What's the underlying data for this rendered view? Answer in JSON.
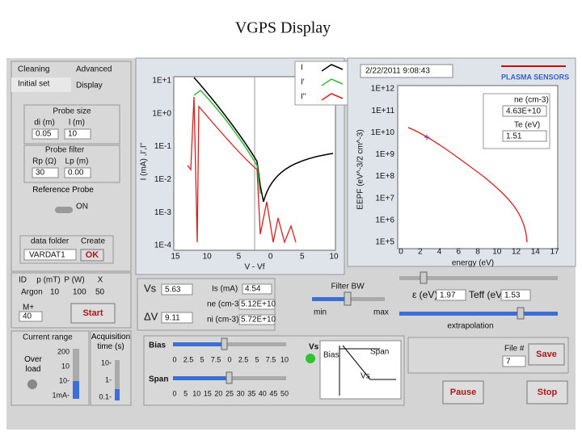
{
  "title": "VGPS Display",
  "tabs": {
    "cleaning": "Cleaning",
    "advanced": "Advanced",
    "initial_set": "Initial set",
    "display": "Display"
  },
  "probe_size": {
    "label": "Probe size",
    "headers": [
      "di (m)",
      "l (m)"
    ],
    "values": [
      "0.05",
      "10"
    ]
  },
  "probe_filter": {
    "label": "Probe filter",
    "headers": [
      "Rp (Ω)",
      "Lp (m)"
    ],
    "values": [
      "30",
      "0.00"
    ]
  },
  "reference_probe": {
    "label": "Reference Probe",
    "state": "ON"
  },
  "data_folder": {
    "label": "data folder",
    "create": "Create",
    "path": "VARDAT1",
    "ok": "OK"
  },
  "gas": {
    "headers": [
      "ID",
      "p (mT)",
      "P (W)",
      "X"
    ],
    "values": [
      "Argon",
      "10",
      "100",
      "50"
    ],
    "mass_label": "M+",
    "mass": "40",
    "start": "Start"
  },
  "current_range": {
    "label": "Current range",
    "overload": "Over load",
    "ticks": [
      "200",
      "10",
      "10-",
      "1mA-"
    ]
  },
  "acquisition": {
    "label": "Acquisition time (s)",
    "ticks": [
      "10-",
      "1-",
      "0.1-"
    ]
  },
  "iv_plot": {
    "y_label": "I (mA) ,I',I''",
    "yticks": [
      "1E+1",
      "1E+0",
      "1E-1",
      "1E-2",
      "1E-3",
      "1E-4"
    ],
    "xticks": [
      "15",
      "10",
      "5",
      "0",
      "5",
      "10"
    ],
    "x_label": "V - Vf",
    "legend": [
      "I",
      "I'",
      "I''"
    ]
  },
  "eepf_plot": {
    "timestamp": "2/22/2011 9:08:43",
    "brand": "PLASMA SENSORS",
    "y_label": "EEPF (eV^-3/2 cm^-3)",
    "yticks": [
      "1E+12",
      "1E+11",
      "1E+10",
      "1E+9",
      "1E+8",
      "1E+7",
      "1E+6",
      "1E+5"
    ],
    "xticks": [
      "0",
      "2",
      "4",
      "6",
      "8",
      "10",
      "12",
      "14",
      "17"
    ],
    "x_label": "energy (eV)",
    "ne_label": "ne (cm-3)",
    "ne": "4.63E+10",
    "te_label": "Te (eV)",
    "te": "1.51"
  },
  "plasma": {
    "vs_label": "Vs",
    "vs": "5.63",
    "dv_label": "ΔV",
    "dv": "9.11",
    "is_label": "Is (mA)",
    "is": "4.54",
    "ne_label": "ne (cm-3)",
    "ne": "5.12E+10",
    "ni_label": "ni (cm-3)",
    "ni": "5.72E+10"
  },
  "filter": {
    "label": "Filter BW",
    "min": "min",
    "max": "max"
  },
  "energy": {
    "eps_label": "ε (eV)",
    "eps": "1.97",
    "teff_label": "Teff (eV)",
    "teff": "1.53",
    "extrapolation": "extrapolation"
  },
  "bias": {
    "label": "Bias",
    "ticks": [
      "0",
      "2.5",
      "5",
      "7.5",
      "0",
      "2.5",
      "5",
      "7.5",
      "10"
    ],
    "vs_label": "Vs"
  },
  "span": {
    "label": "Span",
    "ticks": [
      "0",
      "5",
      "10",
      "15",
      "20",
      "25",
      "30",
      "35",
      "40",
      "45",
      "50"
    ]
  },
  "diagram": {
    "bias": "Bias",
    "span": "Span",
    "vs": "Vs"
  },
  "file": {
    "label": "File #",
    "value": "7",
    "save": "Save"
  },
  "pause": "Pause",
  "stop": "Stop"
}
